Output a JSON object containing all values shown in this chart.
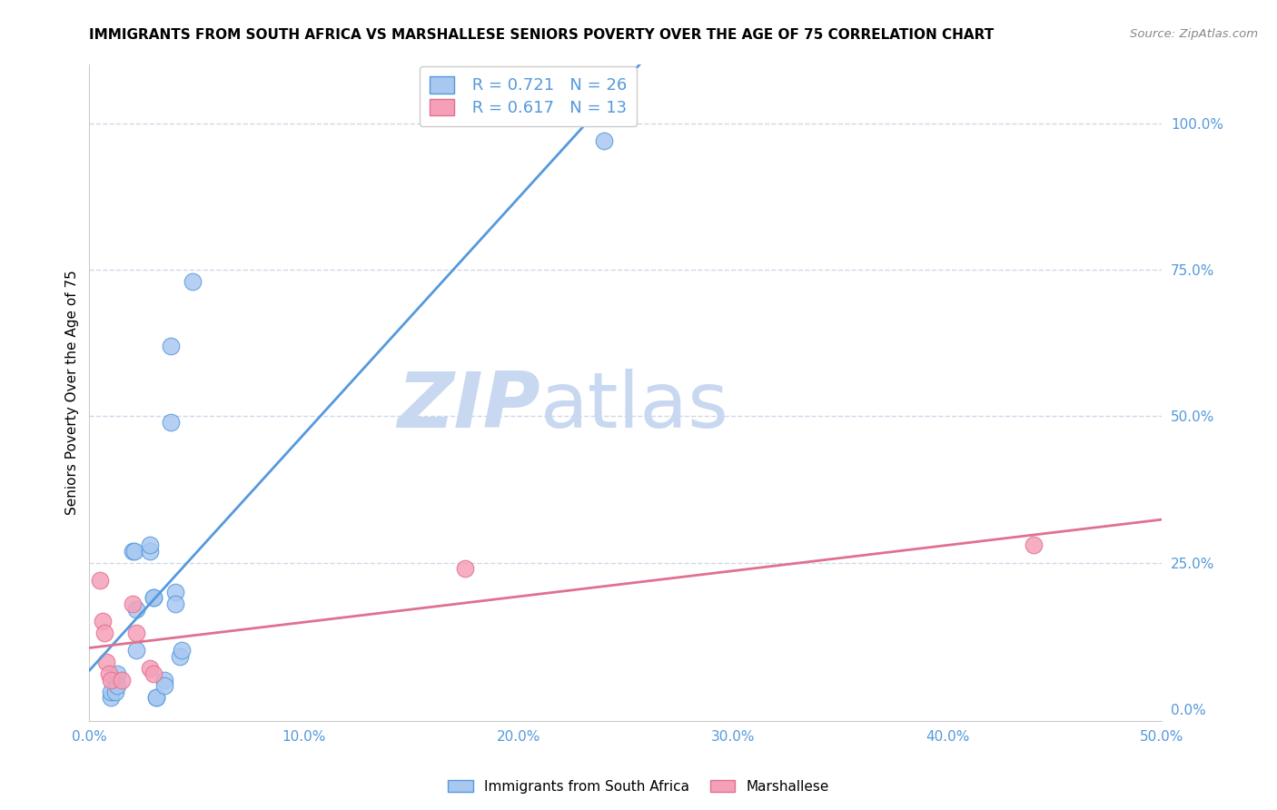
{
  "title": "IMMIGRANTS FROM SOUTH AFRICA VS MARSHALLESE SENIORS POVERTY OVER THE AGE OF 75 CORRELATION CHART",
  "source": "Source: ZipAtlas.com",
  "ylabel": "Seniors Poverty Over the Age of 75",
  "right_yticks": [
    0.0,
    0.25,
    0.5,
    0.75,
    1.0
  ],
  "right_yticklabels": [
    "0.0%",
    "25.0%",
    "50.0%",
    "75.0%",
    "100.0%"
  ],
  "blue_R": 0.721,
  "blue_N": 26,
  "pink_R": 0.617,
  "pink_N": 13,
  "legend_label_blue": "Immigrants from South Africa",
  "legend_label_pink": "Marshallese",
  "blue_color": "#a8c8f0",
  "blue_line_color": "#5599dd",
  "pink_color": "#f5a0b8",
  "pink_line_color": "#e07090",
  "blue_scatter": [
    [
      0.01,
      0.02
    ],
    [
      0.01,
      0.03
    ],
    [
      0.012,
      0.05
    ],
    [
      0.012,
      0.03
    ],
    [
      0.013,
      0.06
    ],
    [
      0.013,
      0.04
    ],
    [
      0.02,
      0.27
    ],
    [
      0.021,
      0.27
    ],
    [
      0.022,
      0.1
    ],
    [
      0.022,
      0.17
    ],
    [
      0.028,
      0.27
    ],
    [
      0.028,
      0.28
    ],
    [
      0.03,
      0.19
    ],
    [
      0.03,
      0.19
    ],
    [
      0.031,
      0.02
    ],
    [
      0.031,
      0.02
    ],
    [
      0.035,
      0.05
    ],
    [
      0.035,
      0.04
    ],
    [
      0.038,
      0.62
    ],
    [
      0.038,
      0.49
    ],
    [
      0.04,
      0.2
    ],
    [
      0.04,
      0.18
    ],
    [
      0.042,
      0.09
    ],
    [
      0.043,
      0.1
    ],
    [
      0.048,
      0.73
    ],
    [
      0.24,
      0.97
    ]
  ],
  "pink_scatter": [
    [
      0.005,
      0.22
    ],
    [
      0.006,
      0.15
    ],
    [
      0.007,
      0.13
    ],
    [
      0.008,
      0.08
    ],
    [
      0.009,
      0.06
    ],
    [
      0.01,
      0.05
    ],
    [
      0.015,
      0.05
    ],
    [
      0.02,
      0.18
    ],
    [
      0.022,
      0.13
    ],
    [
      0.028,
      0.07
    ],
    [
      0.03,
      0.06
    ],
    [
      0.175,
      0.24
    ],
    [
      0.44,
      0.28
    ]
  ],
  "xlim": [
    0.0,
    0.5
  ],
  "ylim": [
    -0.02,
    1.1
  ],
  "watermark_zip": "ZIP",
  "watermark_atlas": "atlas",
  "watermark_color": "#c8d8f0",
  "background_color": "#ffffff",
  "grid_color": "#d0d8e8"
}
